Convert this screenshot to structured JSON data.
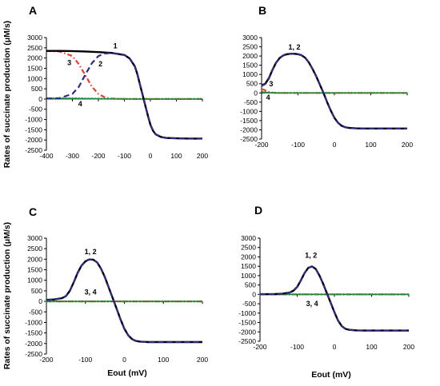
{
  "figure": {
    "ylabel": "Rates of succinate production (μM/s)",
    "xlabel": "Eout   (mV)"
  },
  "colors": {
    "s1": "#000000",
    "s2": "#2e2a8c",
    "s3": "#e8402b",
    "s4": "#1e8f3a",
    "axis": "#000000"
  },
  "chart_data": [
    {
      "type": "line",
      "panel_label": "A",
      "xlim": [
        -400,
        200
      ],
      "ylim": [
        -2500,
        3000
      ],
      "xticks": [
        -400,
        -300,
        -200,
        -100,
        0,
        100,
        200
      ],
      "yticks": [
        -2500,
        -2000,
        -1500,
        -1000,
        -500,
        0,
        500,
        1000,
        1500,
        2000,
        2500,
        3000
      ],
      "show_ylabel": true,
      "show_xlabel": false,
      "series": [
        {
          "key": "s1",
          "style": "solid",
          "x": [
            -400,
            -350,
            -300,
            -250,
            -200,
            -150,
            -100,
            -80,
            -60,
            -50,
            -40,
            -30,
            -20,
            -10,
            0,
            10,
            20,
            40,
            60,
            100,
            150,
            200
          ],
          "y": [
            2350,
            2350,
            2340,
            2320,
            2290,
            2250,
            2150,
            1980,
            1600,
            1200,
            700,
            200,
            -300,
            -800,
            -1250,
            -1550,
            -1720,
            -1850,
            -1900,
            -1920,
            -1930,
            -1930
          ]
        },
        {
          "key": "s2",
          "style": "dashed",
          "x": [
            -400,
            -350,
            -300,
            -275,
            -250,
            -225,
            -200,
            -175,
            -150,
            -100,
            -80,
            -60,
            -50,
            -40,
            -30,
            -20,
            -10,
            0,
            10,
            20,
            40,
            60,
            100,
            150,
            200
          ],
          "y": [
            20,
            40,
            250,
            600,
            1200,
            1750,
            2100,
            2220,
            2250,
            2150,
            1980,
            1600,
            1200,
            700,
            200,
            -300,
            -800,
            -1250,
            -1550,
            -1720,
            -1850,
            -1900,
            -1920,
            -1930,
            -1930
          ]
        },
        {
          "key": "s3",
          "style": "dashdot",
          "x": [
            -400,
            -350,
            -300,
            -275,
            -250,
            -225,
            -200,
            -175,
            -150,
            -100,
            0,
            100,
            200
          ],
          "y": [
            2340,
            2320,
            2100,
            1700,
            1150,
            600,
            250,
            80,
            20,
            5,
            0,
            0,
            0
          ]
        },
        {
          "key": "s4",
          "style": "dotted",
          "x": [
            -400,
            -300,
            -200,
            -100,
            0,
            100,
            200
          ],
          "y": [
            40,
            30,
            15,
            5,
            0,
            0,
            0
          ]
        }
      ],
      "annotations": [
        {
          "text": "1",
          "x": -135,
          "y": 2480
        },
        {
          "text": "2",
          "x": -192,
          "y": 1600
        },
        {
          "text": "3",
          "x": -312,
          "y": 1650
        },
        {
          "text": "4",
          "x": -270,
          "y": -350
        }
      ]
    },
    {
      "type": "line",
      "panel_label": "B",
      "xlim": [
        -200,
        200
      ],
      "ylim": [
        -2500,
        3000
      ],
      "xticks": [
        -200,
        -100,
        0,
        100,
        200
      ],
      "yticks": [
        -2500,
        -2000,
        -1500,
        -1000,
        -500,
        0,
        500,
        1000,
        1500,
        2000,
        2500,
        3000
      ],
      "show_ylabel": false,
      "show_xlabel": false,
      "series": [
        {
          "key": "s1",
          "style": "solid",
          "x": [
            -200,
            -190,
            -180,
            -170,
            -160,
            -150,
            -140,
            -130,
            -120,
            -110,
            -100,
            -90,
            -80,
            -70,
            -60,
            -50,
            -40,
            -30,
            -20,
            -10,
            0,
            10,
            20,
            30,
            40,
            60,
            80,
            100,
            150,
            200
          ],
          "y": [
            400,
            500,
            800,
            1250,
            1650,
            1900,
            2040,
            2100,
            2120,
            2120,
            2100,
            2040,
            1900,
            1650,
            1300,
            900,
            450,
            0,
            -500,
            -950,
            -1350,
            -1620,
            -1780,
            -1860,
            -1900,
            -1920,
            -1930,
            -1930,
            -1930,
            -1930
          ]
        },
        {
          "key": "s2",
          "style": "dashed",
          "x": [
            -200,
            -190,
            -180,
            -170,
            -160,
            -150,
            -140,
            -130,
            -120,
            -110,
            -100,
            -90,
            -80,
            -70,
            -60,
            -50,
            -40,
            -30,
            -20,
            -10,
            0,
            10,
            20,
            30,
            40,
            60,
            80,
            100,
            150,
            200
          ],
          "y": [
            380,
            480,
            780,
            1240,
            1650,
            1900,
            2040,
            2100,
            2120,
            2120,
            2100,
            2040,
            1900,
            1650,
            1300,
            900,
            450,
            0,
            -500,
            -950,
            -1350,
            -1620,
            -1780,
            -1860,
            -1900,
            -1920,
            -1930,
            -1930,
            -1930,
            -1930
          ]
        },
        {
          "key": "s3",
          "style": "dashdot",
          "x": [
            -200,
            -195,
            -190,
            -185,
            -180,
            -170,
            -160,
            -140,
            -100,
            0,
            100,
            200
          ],
          "y": [
            200,
            180,
            140,
            90,
            50,
            20,
            5,
            0,
            0,
            0,
            0,
            0
          ]
        },
        {
          "key": "s4",
          "style": "dotted",
          "x": [
            -200,
            -190,
            -180,
            -170,
            -160,
            -140,
            -100,
            0,
            100,
            200
          ],
          "y": [
            60,
            40,
            20,
            10,
            0,
            0,
            0,
            0,
            0,
            0
          ]
        }
      ],
      "annotations": [
        {
          "text": "1, 2",
          "x": -110,
          "y": 2350
        },
        {
          "text": "3",
          "x": -174,
          "y": 350
        },
        {
          "text": "4",
          "x": -182,
          "y": -380
        }
      ]
    },
    {
      "type": "line",
      "panel_label": "C",
      "xlim": [
        -200,
        200
      ],
      "ylim": [
        -2500,
        3000
      ],
      "xticks": [
        -200,
        -100,
        0,
        100,
        200
      ],
      "yticks": [
        -2500,
        -2000,
        -1500,
        -1000,
        -500,
        0,
        500,
        1000,
        1500,
        2000,
        2500,
        3000
      ],
      "show_ylabel": true,
      "show_xlabel": true,
      "series": [
        {
          "key": "s1",
          "style": "solid",
          "x": [
            -200,
            -180,
            -160,
            -150,
            -140,
            -130,
            -120,
            -110,
            -100,
            -90,
            -80,
            -70,
            -60,
            -50,
            -40,
            -30,
            -20,
            -10,
            0,
            10,
            20,
            30,
            40,
            60,
            80,
            100,
            150,
            200
          ],
          "y": [
            70,
            90,
            150,
            250,
            500,
            900,
            1350,
            1700,
            1900,
            1990,
            1980,
            1850,
            1550,
            1150,
            650,
            150,
            -350,
            -850,
            -1300,
            -1620,
            -1800,
            -1880,
            -1910,
            -1930,
            -1930,
            -1930,
            -1930,
            -1930
          ]
        },
        {
          "key": "s2",
          "style": "dashed",
          "x": [
            -200,
            -180,
            -160,
            -150,
            -140,
            -130,
            -120,
            -110,
            -100,
            -90,
            -80,
            -70,
            -60,
            -50,
            -40,
            -30,
            -20,
            -10,
            0,
            10,
            20,
            30,
            40,
            60,
            80,
            100,
            150,
            200
          ],
          "y": [
            60,
            85,
            145,
            245,
            495,
            895,
            1345,
            1700,
            1900,
            1990,
            1980,
            1850,
            1550,
            1150,
            650,
            150,
            -350,
            -850,
            -1300,
            -1620,
            -1800,
            -1880,
            -1910,
            -1930,
            -1930,
            -1930,
            -1930,
            -1930
          ]
        },
        {
          "key": "s3",
          "style": "dashdot",
          "x": [
            -200,
            -100,
            0,
            100,
            200
          ],
          "y": [
            0,
            0,
            0,
            0,
            0
          ]
        },
        {
          "key": "s4",
          "style": "dotted",
          "x": [
            -200,
            -100,
            0,
            100,
            200
          ],
          "y": [
            0,
            0,
            0,
            0,
            0
          ]
        }
      ],
      "annotations": [
        {
          "text": "1, 2",
          "x": -87,
          "y": 2250
        },
        {
          "text": "3, 4",
          "x": -87,
          "y": 330
        }
      ]
    },
    {
      "type": "line",
      "panel_label": "D",
      "xlim": [
        -200,
        200
      ],
      "ylim": [
        -2500,
        3000
      ],
      "xticks": [
        -200,
        -100,
        0,
        100,
        200
      ],
      "yticks": [
        -2500,
        -2000,
        -1500,
        -1000,
        -500,
        0,
        500,
        1000,
        1500,
        2000,
        2500,
        3000
      ],
      "show_ylabel": false,
      "show_xlabel": true,
      "series": [
        {
          "key": "s1",
          "style": "solid",
          "x": [
            -200,
            -160,
            -140,
            -120,
            -110,
            -100,
            -90,
            -80,
            -70,
            -60,
            -50,
            -40,
            -30,
            -20,
            -10,
            0,
            10,
            20,
            30,
            40,
            60,
            80,
            100,
            150,
            200
          ],
          "y": [
            10,
            20,
            40,
            100,
            200,
            400,
            750,
            1150,
            1420,
            1490,
            1350,
            1000,
            550,
            50,
            -450,
            -950,
            -1400,
            -1700,
            -1840,
            -1890,
            -1920,
            -1930,
            -1930,
            -1930,
            -1930
          ]
        },
        {
          "key": "s2",
          "style": "dashed",
          "x": [
            -200,
            -160,
            -140,
            -120,
            -110,
            -100,
            -90,
            -80,
            -70,
            -60,
            -50,
            -40,
            -30,
            -20,
            -10,
            0,
            10,
            20,
            30,
            40,
            60,
            80,
            100,
            150,
            200
          ],
          "y": [
            5,
            15,
            35,
            95,
            195,
            395,
            745,
            1145,
            1420,
            1490,
            1350,
            1000,
            550,
            50,
            -450,
            -950,
            -1400,
            -1700,
            -1840,
            -1890,
            -1920,
            -1930,
            -1930,
            -1930,
            -1930
          ]
        },
        {
          "key": "s3",
          "style": "dashdot",
          "x": [
            -200,
            -100,
            0,
            100,
            200
          ],
          "y": [
            0,
            0,
            0,
            0,
            0
          ]
        },
        {
          "key": "s4",
          "style": "dotted",
          "x": [
            -200,
            -100,
            0,
            100,
            200
          ],
          "y": [
            0,
            0,
            0,
            0,
            0
          ]
        }
      ],
      "annotations": [
        {
          "text": "1, 2",
          "x": -63,
          "y": 1950
        },
        {
          "text": "3, 4",
          "x": -60,
          "y": -620
        }
      ]
    }
  ]
}
